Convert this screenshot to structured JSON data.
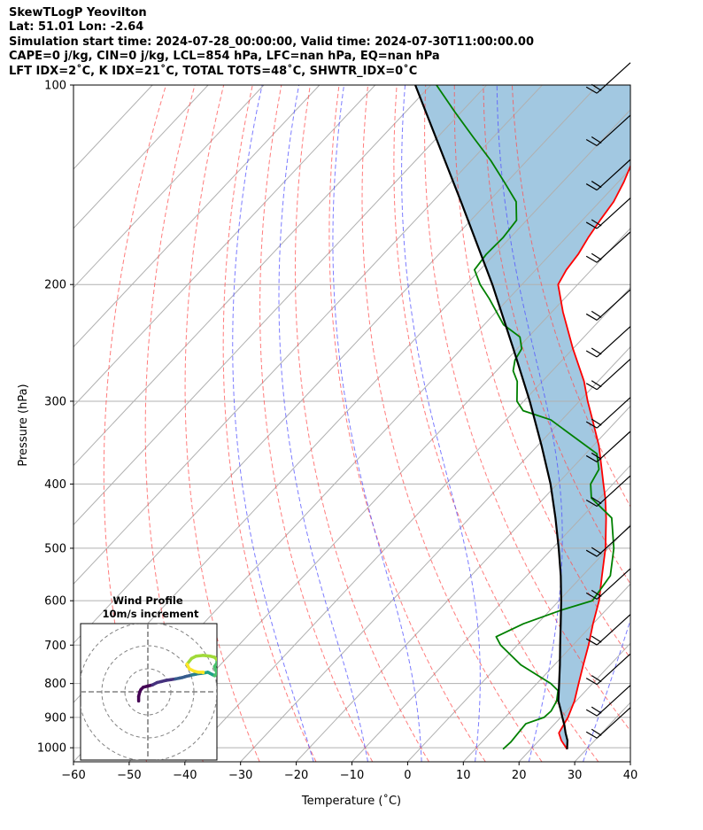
{
  "header": {
    "line1": "SkewTLogP Yeovilton",
    "line2": "Lat: 51.01   Lon: -2.64",
    "line3": "Simulation start time: 2024-07-28_00:00:00, Valid time: 2024-07-30T11:00:00.00",
    "line4": "CAPE=0 j/kg, CIN=0 j/kg, LCL=854 hPa, LFC=nan hPa, EQ=nan hPa",
    "line5": "LFT IDX=2˚C, K IDX=21˚C, TOTAL TOTS=48˚C, SHWTR_IDX=0˚C"
  },
  "chart_data": [
    {
      "type": "line",
      "subtype": "skew-T log-P",
      "xlabel": "Temperature (˚C)",
      "ylabel": "Pressure (hPa)",
      "xlim": [
        -60,
        40
      ],
      "ylim": [
        1050,
        100
      ],
      "y_scale": "log",
      "x_ticks": [
        -60,
        -50,
        -40,
        -30,
        -20,
        -10,
        0,
        10,
        20,
        30,
        40
      ],
      "x_tick_labels": [
        "−60",
        "−50",
        "−40",
        "−30",
        "−20",
        "−10",
        "0",
        "10",
        "20",
        "30",
        "40"
      ],
      "y_ticks": [
        100,
        200,
        300,
        400,
        500,
        600,
        700,
        800,
        900,
        1000
      ],
      "y_tick_labels": [
        "100",
        "200",
        "300",
        "400",
        "500",
        "600",
        "700",
        "800",
        "900",
        "1000"
      ],
      "grid": true,
      "series": [
        {
          "role": "temperature",
          "color": "#ff0000",
          "p": [
            1005,
            975,
            950,
            925,
            900,
            850,
            800,
            750,
            700,
            650,
            600,
            550,
            500,
            450,
            420,
            400,
            380,
            350,
            320,
            300,
            280,
            250,
            220,
            200,
            190,
            180,
            170,
            160,
            150,
            140,
            130,
            120,
            110,
            105,
            100
          ],
          "t": [
            26.5,
            24,
            22.3,
            21.8,
            21.3,
            19.7,
            17.5,
            15.2,
            12.8,
            10,
            7.2,
            3.5,
            -0.5,
            -5.5,
            -9,
            -11.7,
            -14.5,
            -19,
            -24.5,
            -28.5,
            -32.5,
            -40,
            -48,
            -53.5,
            -54.5,
            -55,
            -56,
            -56.8,
            -57.5,
            -59,
            -61,
            -64,
            -67.5,
            -69.5,
            -71
          ]
        },
        {
          "role": "dewpoint",
          "color": "#008000",
          "p": [
            1005,
            980,
            950,
            920,
            900,
            880,
            850,
            820,
            800,
            750,
            700,
            680,
            650,
            620,
            600,
            550,
            500,
            450,
            420,
            400,
            380,
            360,
            320,
            310,
            300,
            280,
            270,
            260,
            250,
            240,
            230,
            210,
            200,
            190,
            180,
            170,
            160,
            150,
            140,
            130,
            120,
            110,
            100
          ],
          "t": [
            15,
            15.2,
            15,
            14.8,
            17,
            17.2,
            16.5,
            15,
            12.5,
            4,
            -3,
            -5.2,
            -2.5,
            2,
            6,
            5,
            1,
            -4.5,
            -11.5,
            -14,
            -15,
            -18,
            -32,
            -38.5,
            -41.2,
            -44.5,
            -47,
            -48.5,
            -49.2,
            -51.5,
            -56.5,
            -63.5,
            -67.5,
            -71,
            -71.5,
            -71.3,
            -71.8,
            -75,
            -80.5,
            -86.5,
            -93.5,
            -101,
            -109
          ]
        },
        {
          "role": "parcel",
          "color": "#000000",
          "p": [
            1005,
            975,
            950,
            925,
            900,
            875,
            850,
            800,
            750,
            700,
            650,
            600,
            550,
            500,
            450,
            400,
            350,
            300,
            250,
            200,
            150,
            100
          ],
          "t": [
            26.5,
            25.1,
            23.5,
            22.0,
            20.3,
            18.6,
            16.8,
            14.0,
            11.0,
            7.7,
            4.2,
            0.4,
            -3.9,
            -8.9,
            -14.6,
            -21.2,
            -29.3,
            -38.9,
            -50.7,
            -65.3,
            -84.9,
            -112.8
          ]
        }
      ],
      "shaded_region": {
        "between": [
          "parcel",
          "temperature"
        ],
        "color": "#a2c8e1"
      },
      "dry_adiabats_theta_C": [
        -50,
        -40,
        -30,
        -20,
        -10,
        0,
        10,
        20,
        30,
        40,
        50,
        60,
        70
      ],
      "moist_adiabats_C": [
        -20,
        -10,
        0,
        10,
        20,
        30,
        40
      ],
      "mixing_ratio_lines": [],
      "isotherm_spacing_C": 10,
      "wind_barbs_side": "right",
      "wind_barbs": [
        {
          "p": 100,
          "u": 25,
          "v": 15
        },
        {
          "p": 120,
          "u": 25,
          "v": 15
        },
        {
          "p": 140,
          "u": 25,
          "v": 15
        },
        {
          "p": 160,
          "u": 25,
          "v": 15
        },
        {
          "p": 180,
          "u": 25,
          "v": 15
        },
        {
          "p": 220,
          "u": 25,
          "v": 15
        },
        {
          "p": 250,
          "u": 10,
          "v": 25
        },
        {
          "p": 280,
          "u": 20,
          "v": 20
        },
        {
          "p": 320,
          "u": 15,
          "v": 15
        },
        {
          "p": 360,
          "u": 25,
          "v": 5
        },
        {
          "p": 420,
          "u": 25,
          "v": 10
        },
        {
          "p": 500,
          "u": 25,
          "v": 10
        },
        {
          "p": 580,
          "u": 25,
          "v": 10
        },
        {
          "p": 680,
          "u": 25,
          "v": 10
        },
        {
          "p": 780,
          "u": 20,
          "v": 15
        },
        {
          "p": 870,
          "u": 15,
          "v": 15
        },
        {
          "p": 940,
          "u": 10,
          "v": 10
        }
      ]
    },
    {
      "type": "hodograph",
      "title": "Wind Profile",
      "subtitle": "10m/s increment",
      "ring_increment": 10,
      "ring_count": 3,
      "u": [
        -4,
        -4,
        -3.5,
        -3,
        -2,
        0,
        2,
        4,
        6,
        8,
        10,
        12,
        14,
        15,
        16,
        17,
        18,
        19,
        20,
        21,
        22,
        23,
        24,
        25,
        26,
        26.5,
        27,
        28,
        29,
        30,
        29.5,
        29,
        30,
        30,
        29,
        27,
        24,
        21,
        19,
        17,
        18,
        20,
        22,
        24,
        24
      ],
      "v": [
        -4,
        -2,
        0,
        1,
        2,
        2.5,
        3,
        4,
        4.5,
        5,
        5.3,
        5.6,
        6,
        6.2,
        6.5,
        6.8,
        7,
        7.3,
        7.5,
        7.7,
        7.9,
        8,
        8.1,
        8.3,
        8.5,
        8.3,
        8,
        7.5,
        7,
        8,
        9.5,
        11,
        12.5,
        14,
        15,
        15.5,
        15.8,
        15.5,
        14.5,
        12,
        10,
        9,
        8.5,
        8.5,
        8.3
      ],
      "colormap": "viridis"
    }
  ]
}
